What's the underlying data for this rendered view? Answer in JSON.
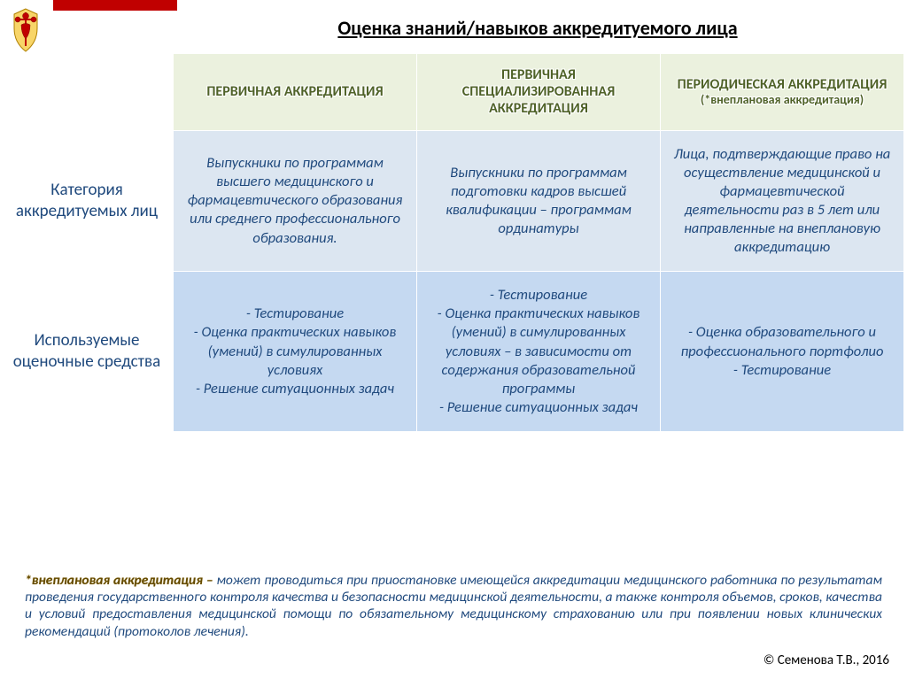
{
  "title": "Оценка знаний/навыков аккредитуемого лица",
  "table": {
    "col_headers": [
      {
        "line1": "ПЕРВИЧНАЯ АККРЕДИТАЦИЯ",
        "line2": ""
      },
      {
        "line1": "ПЕРВИЧНАЯ СПЕЦИАЛИЗИРОВАННАЯ АККРЕДИТАЦИЯ",
        "line2": ""
      },
      {
        "line1": "ПЕРИОДИЧЕСКАЯ АККРЕДИТАЦИЯ",
        "line2": "(*внеплановая аккредитация)"
      }
    ],
    "row_headers": [
      "Категория аккредитуемых лиц",
      "Используемые оценочные средства"
    ],
    "cells": {
      "r1c1": "Выпускники по программам высшего медицинского и фармацевтического образования или среднего профессионального образования.",
      "r1c2": "Выпускники по программам подготовки кадров высшей квалификации – программам ординатуры",
      "r1c3": "Лица, подтверждающие право на осуществление медицинской и фармацевтической деятельности раз в 5 лет или направленные на внеплановую аккредитацию",
      "r2c1": "- Тестирование\n- Оценка практических навыков (умений) в симулированных условиях\n- Решение ситуационных задач",
      "r2c2": "- Тестирование\n- Оценка практических навыков (умений) в симулированных условиях – в зависимости от содержания образовательной программы\n- Решение ситуационных задач",
      "r2c3": "- Оценка образовательного и профессионального портфолио\n- Тестирование"
    }
  },
  "footnote": {
    "lead": "*внеплановая аккредитация –",
    "body": " может проводиться при приостановке имеющейся аккредитации медицинского работника по результатам проведения государственного контроля качества и безопасности медицинской деятельности, а также контроля объемов, сроков, качества и условий предоставления медицинской помощи по обязательному медицинскому страхованию или при появлении новых клинических рекомендаций (протоколов лечения)."
  },
  "copyright": "© Семенова Т.В., 2016",
  "colors": {
    "header_bg": "#ebf1de",
    "header_text": "#4f6228",
    "rowhead_text": "#1f497d",
    "cell_text": "#1f497d",
    "cell_light": "#dce6f1",
    "cell_dark": "#c5d9f1",
    "accent_red": "#c00000"
  }
}
